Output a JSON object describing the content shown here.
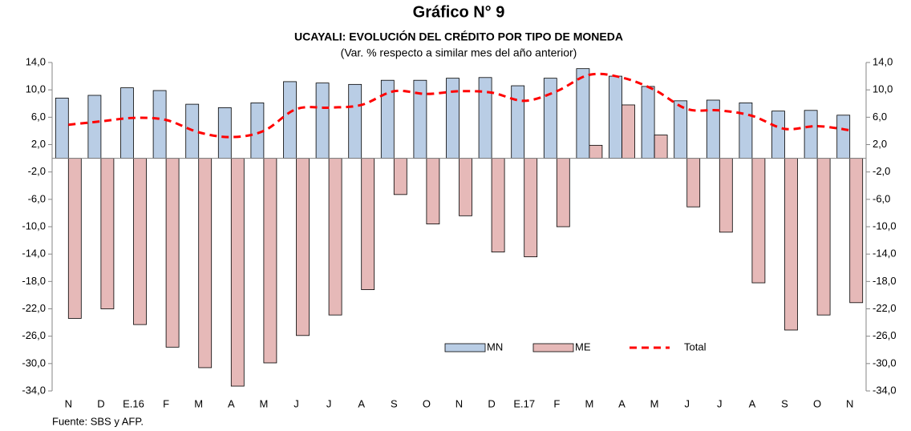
{
  "chart_data": {
    "type": "bar",
    "title": "Gráfico N° 9",
    "subtitle": "UCAYALI: EVOLUCIÓN DEL CRÉDITO POR TIPO DE MONEDA",
    "note": "(Var. % respecto a similar mes del año anterior)",
    "source": "Fuente: SBS y AFP.",
    "categories": [
      "N",
      "D",
      "E.16",
      "F",
      "M",
      "A",
      "M",
      "J",
      "J",
      "A",
      "S",
      "O",
      "N",
      "D",
      "E.17",
      "F",
      "M",
      "A",
      "M",
      "J",
      "J",
      "A",
      "S",
      "O",
      "N"
    ],
    "series": [
      {
        "name": "MN",
        "type": "bar",
        "color": "#b9cde5",
        "values": [
          8.8,
          9.2,
          10.3,
          9.9,
          7.9,
          7.4,
          8.1,
          11.2,
          11.0,
          10.8,
          11.4,
          11.4,
          11.7,
          11.8,
          10.6,
          11.7,
          13.1,
          12.0,
          10.5,
          8.4,
          8.5,
          8.1,
          6.9,
          7.0,
          6.3
        ]
      },
      {
        "name": "ME",
        "type": "bar",
        "color": "#e6b9b8",
        "values": [
          -23.4,
          -22.0,
          -24.3,
          -27.6,
          -30.6,
          -33.3,
          -29.9,
          -25.9,
          -22.9,
          -19.2,
          -5.3,
          -9.6,
          -8.4,
          -13.7,
          -14.4,
          -10.0,
          1.9,
          7.8,
          3.4,
          -7.1,
          -10.8,
          -18.2,
          -25.1,
          -22.9,
          -21.1
        ]
      },
      {
        "name": "Total",
        "type": "line",
        "color": "#ff0000",
        "values": [
          4.9,
          5.4,
          5.9,
          5.6,
          3.8,
          3.1,
          4.0,
          7.2,
          7.4,
          7.8,
          9.8,
          9.4,
          9.8,
          9.6,
          8.4,
          9.8,
          12.2,
          11.8,
          10.0,
          7.2,
          7.0,
          6.2,
          4.3,
          4.7,
          4.1
        ]
      }
    ],
    "ylim": [
      -34,
      14
    ],
    "yticks": [
      {
        "value": 14,
        "label": "14,0"
      },
      {
        "value": 10,
        "label": "10,0"
      },
      {
        "value": 6,
        "label": "6,0"
      },
      {
        "value": 2,
        "label": "2,0"
      },
      {
        "value": -2,
        "label": "-2,0"
      },
      {
        "value": -6,
        "label": "-6,0"
      },
      {
        "value": -10,
        "label": "-10,0"
      },
      {
        "value": -14,
        "label": "-14,0"
      },
      {
        "value": -18,
        "label": "-18,0"
      },
      {
        "value": -22,
        "label": "-22,0"
      },
      {
        "value": -26,
        "label": "-26,0"
      },
      {
        "value": -30,
        "label": "-30,0"
      },
      {
        "value": -34,
        "label": "-34,0"
      }
    ],
    "y2lim": [
      -34,
      14
    ],
    "y2ticks": [
      {
        "value": 14,
        "label": "14,0"
      },
      {
        "value": 10,
        "label": "10,0"
      },
      {
        "value": 6,
        "label": "6,0"
      },
      {
        "value": 2,
        "label": "2,0"
      },
      {
        "value": -2,
        "label": "-2,0"
      },
      {
        "value": -6,
        "label": "-6,0"
      },
      {
        "value": -10,
        "label": "-10,0"
      },
      {
        "value": -14,
        "label": "-14,0"
      },
      {
        "value": -18,
        "label": "-18,0"
      },
      {
        "value": -22,
        "label": "-22,0"
      },
      {
        "value": -26,
        "label": "-26,0"
      },
      {
        "value": -30,
        "label": "-30,0"
      },
      {
        "value": -34,
        "label": "-34,0"
      }
    ],
    "grid": false,
    "legend": "lower-center"
  }
}
